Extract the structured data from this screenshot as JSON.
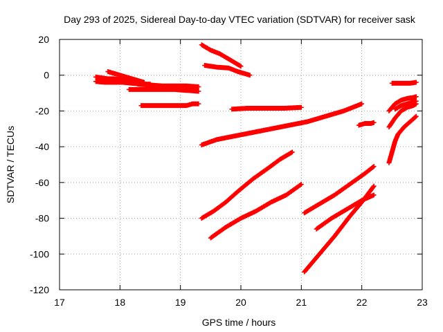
{
  "chart_data": {
    "type": "scatter",
    "title": "Day 293 of 2025, Sidereal Day-to-day VTEC variation (SDTVAR) for receiver sask",
    "xlabel": "GPS time / hours",
    "ylabel": "SDTVAR / TECUs",
    "xlim": [
      17,
      23
    ],
    "ylim": [
      -120,
      20
    ],
    "xticks": [
      17,
      18,
      19,
      20,
      21,
      22,
      23
    ],
    "yticks": [
      -120,
      -100,
      -80,
      -60,
      -40,
      -20,
      0,
      20
    ],
    "grid": true,
    "marker": "plus",
    "color": "#ff0000",
    "series": [
      {
        "points": [
          [
            17.6,
            -1
          ],
          [
            17.7,
            -1.5
          ],
          [
            17.8,
            -2
          ],
          [
            17.9,
            -2
          ],
          [
            18.0,
            -2.5
          ],
          [
            18.1,
            -3
          ],
          [
            18.2,
            -3
          ]
        ]
      },
      {
        "points": [
          [
            17.6,
            -3.5
          ],
          [
            17.75,
            -4
          ],
          [
            17.9,
            -4
          ],
          [
            18.05,
            -4
          ],
          [
            18.2,
            -4.5
          ],
          [
            18.35,
            -5
          ],
          [
            18.5,
            -5
          ]
        ]
      },
      {
        "points": [
          [
            17.8,
            2
          ],
          [
            17.9,
            1
          ],
          [
            18.0,
            0
          ],
          [
            18.1,
            -1
          ],
          [
            18.2,
            -2
          ],
          [
            18.3,
            -3
          ],
          [
            18.4,
            -4
          ]
        ]
      },
      {
        "points": [
          [
            18.15,
            -8
          ],
          [
            18.4,
            -8
          ],
          [
            18.65,
            -8
          ],
          [
            18.9,
            -8
          ],
          [
            19.1,
            -8.5
          ],
          [
            19.3,
            -9
          ]
        ]
      },
      {
        "points": [
          [
            18.3,
            -5
          ],
          [
            18.5,
            -5.5
          ],
          [
            18.7,
            -6
          ],
          [
            18.9,
            -6
          ],
          [
            19.1,
            -6
          ],
          [
            19.3,
            -6.5
          ]
        ]
      },
      {
        "points": [
          [
            18.35,
            -17
          ],
          [
            18.6,
            -17
          ],
          [
            18.85,
            -17
          ],
          [
            19.1,
            -17
          ],
          [
            19.2,
            -16
          ],
          [
            19.3,
            -16
          ]
        ]
      },
      {
        "points": [
          [
            19.35,
            17
          ],
          [
            19.5,
            14
          ],
          [
            19.65,
            12
          ],
          [
            19.8,
            9
          ],
          [
            19.9,
            7
          ],
          [
            20.0,
            5
          ]
        ]
      },
      {
        "points": [
          [
            19.4,
            5.5
          ],
          [
            19.6,
            4.5
          ],
          [
            19.8,
            4
          ],
          [
            19.95,
            2
          ],
          [
            20.05,
            1
          ],
          [
            20.15,
            0
          ]
        ]
      },
      {
        "points": [
          [
            19.35,
            -39
          ],
          [
            19.6,
            -36
          ],
          [
            19.9,
            -34
          ],
          [
            20.2,
            -32
          ],
          [
            20.5,
            -30
          ],
          [
            20.8,
            -28
          ],
          [
            21.1,
            -26
          ],
          [
            21.4,
            -23
          ],
          [
            21.7,
            -20
          ],
          [
            22.0,
            -16
          ]
        ]
      },
      {
        "points": [
          [
            19.85,
            -19
          ],
          [
            20.1,
            -18.5
          ],
          [
            20.4,
            -18.5
          ],
          [
            20.7,
            -18.5
          ],
          [
            21.0,
            -18
          ]
        ]
      },
      {
        "points": [
          [
            19.35,
            -80
          ],
          [
            19.55,
            -76
          ],
          [
            19.75,
            -71
          ],
          [
            19.95,
            -65
          ],
          [
            20.2,
            -58
          ],
          [
            20.45,
            -52
          ],
          [
            20.65,
            -47
          ],
          [
            20.85,
            -43
          ]
        ]
      },
      {
        "points": [
          [
            19.5,
            -91
          ],
          [
            19.75,
            -85
          ],
          [
            20.0,
            -80
          ],
          [
            20.25,
            -76
          ],
          [
            20.5,
            -71
          ],
          [
            20.75,
            -67
          ],
          [
            21.0,
            -61
          ]
        ]
      },
      {
        "points": [
          [
            21.05,
            -77
          ],
          [
            21.3,
            -72
          ],
          [
            21.55,
            -67
          ],
          [
            21.8,
            -61
          ],
          [
            22.05,
            -55
          ],
          [
            22.2,
            -51
          ]
        ]
      },
      {
        "points": [
          [
            21.25,
            -86
          ],
          [
            21.5,
            -80
          ],
          [
            21.75,
            -75
          ],
          [
            22.0,
            -70
          ],
          [
            22.2,
            -67
          ]
        ]
      },
      {
        "points": [
          [
            21.05,
            -110
          ],
          [
            21.3,
            -100
          ],
          [
            21.55,
            -90
          ],
          [
            21.8,
            -79
          ],
          [
            22.0,
            -71
          ],
          [
            22.2,
            -62
          ]
        ]
      },
      {
        "points": [
          [
            21.95,
            -28
          ],
          [
            22.05,
            -27
          ],
          [
            22.15,
            -27
          ],
          [
            22.2,
            -26.5
          ]
        ]
      },
      {
        "points": [
          [
            22.5,
            -4.5
          ],
          [
            22.6,
            -4.5
          ],
          [
            22.7,
            -4.5
          ],
          [
            22.8,
            -4.5
          ],
          [
            22.9,
            -4
          ]
        ]
      },
      {
        "points": [
          [
            22.45,
            -49
          ],
          [
            22.5,
            -43
          ],
          [
            22.55,
            -37
          ],
          [
            22.6,
            -33
          ],
          [
            22.7,
            -29
          ],
          [
            22.8,
            -26
          ],
          [
            22.9,
            -23
          ]
        ]
      },
      {
        "points": [
          [
            22.45,
            -29
          ],
          [
            22.55,
            -24
          ],
          [
            22.65,
            -20
          ],
          [
            22.75,
            -18
          ],
          [
            22.85,
            -17
          ],
          [
            22.9,
            -16
          ]
        ]
      },
      {
        "points": [
          [
            22.45,
            -20
          ],
          [
            22.55,
            -16
          ],
          [
            22.65,
            -14
          ],
          [
            22.75,
            -13
          ],
          [
            22.85,
            -12.5
          ],
          [
            22.9,
            -12
          ]
        ]
      },
      {
        "points": [
          [
            22.55,
            -19
          ],
          [
            22.65,
            -17
          ],
          [
            22.75,
            -16
          ],
          [
            22.85,
            -15
          ],
          [
            22.9,
            -14.5
          ]
        ]
      }
    ]
  }
}
